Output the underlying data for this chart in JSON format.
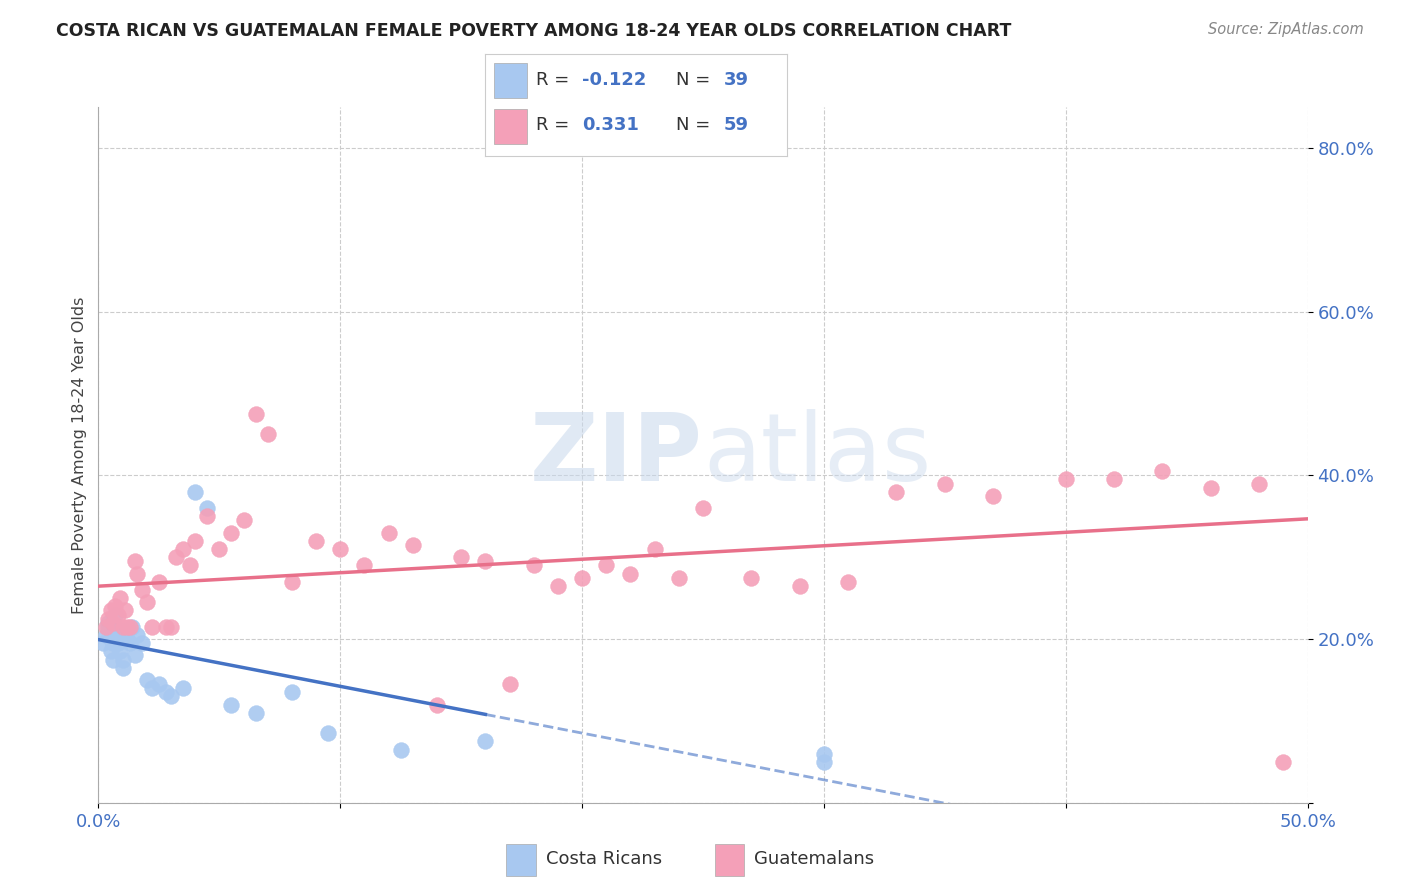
{
  "title": "COSTA RICAN VS GUATEMALAN FEMALE POVERTY AMONG 18-24 YEAR OLDS CORRELATION CHART",
  "source": "Source: ZipAtlas.com",
  "ylabel": "Female Poverty Among 18-24 Year Olds",
  "blue_color": "#A8C8F0",
  "pink_color": "#F4A0B8",
  "blue_line_color": "#4472C4",
  "pink_line_color": "#E8708A",
  "legend_R_blue": "-0.122",
  "legend_N_blue": "39",
  "legend_R_pink": "0.331",
  "legend_N_pink": "59",
  "watermark": "ZIPatlas",
  "xlim": [
    0.0,
    0.5
  ],
  "ylim": [
    0.0,
    0.85
  ],
  "blue_x": [
    0.002,
    0.003,
    0.004,
    0.004,
    0.005,
    0.005,
    0.005,
    0.006,
    0.006,
    0.007,
    0.007,
    0.008,
    0.008,
    0.009,
    0.01,
    0.01,
    0.011,
    0.012,
    0.013,
    0.014,
    0.015,
    0.016,
    0.018,
    0.02,
    0.022,
    0.025,
    0.028,
    0.03,
    0.035,
    0.04,
    0.045,
    0.055,
    0.065,
    0.08,
    0.095,
    0.125,
    0.16,
    0.3,
    0.3
  ],
  "blue_y": [
    0.195,
    0.205,
    0.215,
    0.22,
    0.185,
    0.2,
    0.21,
    0.175,
    0.195,
    0.215,
    0.23,
    0.205,
    0.195,
    0.185,
    0.175,
    0.165,
    0.21,
    0.2,
    0.195,
    0.215,
    0.18,
    0.205,
    0.195,
    0.15,
    0.14,
    0.145,
    0.135,
    0.13,
    0.14,
    0.38,
    0.36,
    0.12,
    0.11,
    0.135,
    0.085,
    0.065,
    0.075,
    0.05,
    0.06
  ],
  "pink_x": [
    0.003,
    0.004,
    0.005,
    0.006,
    0.007,
    0.008,
    0.009,
    0.01,
    0.011,
    0.012,
    0.013,
    0.015,
    0.016,
    0.018,
    0.02,
    0.022,
    0.025,
    0.028,
    0.03,
    0.032,
    0.035,
    0.038,
    0.04,
    0.045,
    0.05,
    0.055,
    0.06,
    0.065,
    0.07,
    0.08,
    0.09,
    0.1,
    0.11,
    0.12,
    0.13,
    0.14,
    0.15,
    0.16,
    0.17,
    0.18,
    0.19,
    0.2,
    0.21,
    0.22,
    0.23,
    0.24,
    0.25,
    0.27,
    0.29,
    0.31,
    0.33,
    0.35,
    0.37,
    0.4,
    0.42,
    0.44,
    0.46,
    0.48,
    0.49
  ],
  "pink_y": [
    0.215,
    0.225,
    0.235,
    0.22,
    0.24,
    0.23,
    0.25,
    0.215,
    0.235,
    0.215,
    0.215,
    0.295,
    0.28,
    0.26,
    0.245,
    0.215,
    0.27,
    0.215,
    0.215,
    0.3,
    0.31,
    0.29,
    0.32,
    0.35,
    0.31,
    0.33,
    0.345,
    0.475,
    0.45,
    0.27,
    0.32,
    0.31,
    0.29,
    0.33,
    0.315,
    0.12,
    0.3,
    0.295,
    0.145,
    0.29,
    0.265,
    0.275,
    0.29,
    0.28,
    0.31,
    0.275,
    0.36,
    0.275,
    0.265,
    0.27,
    0.38,
    0.39,
    0.375,
    0.395,
    0.395,
    0.405,
    0.385,
    0.39,
    0.05
  ]
}
